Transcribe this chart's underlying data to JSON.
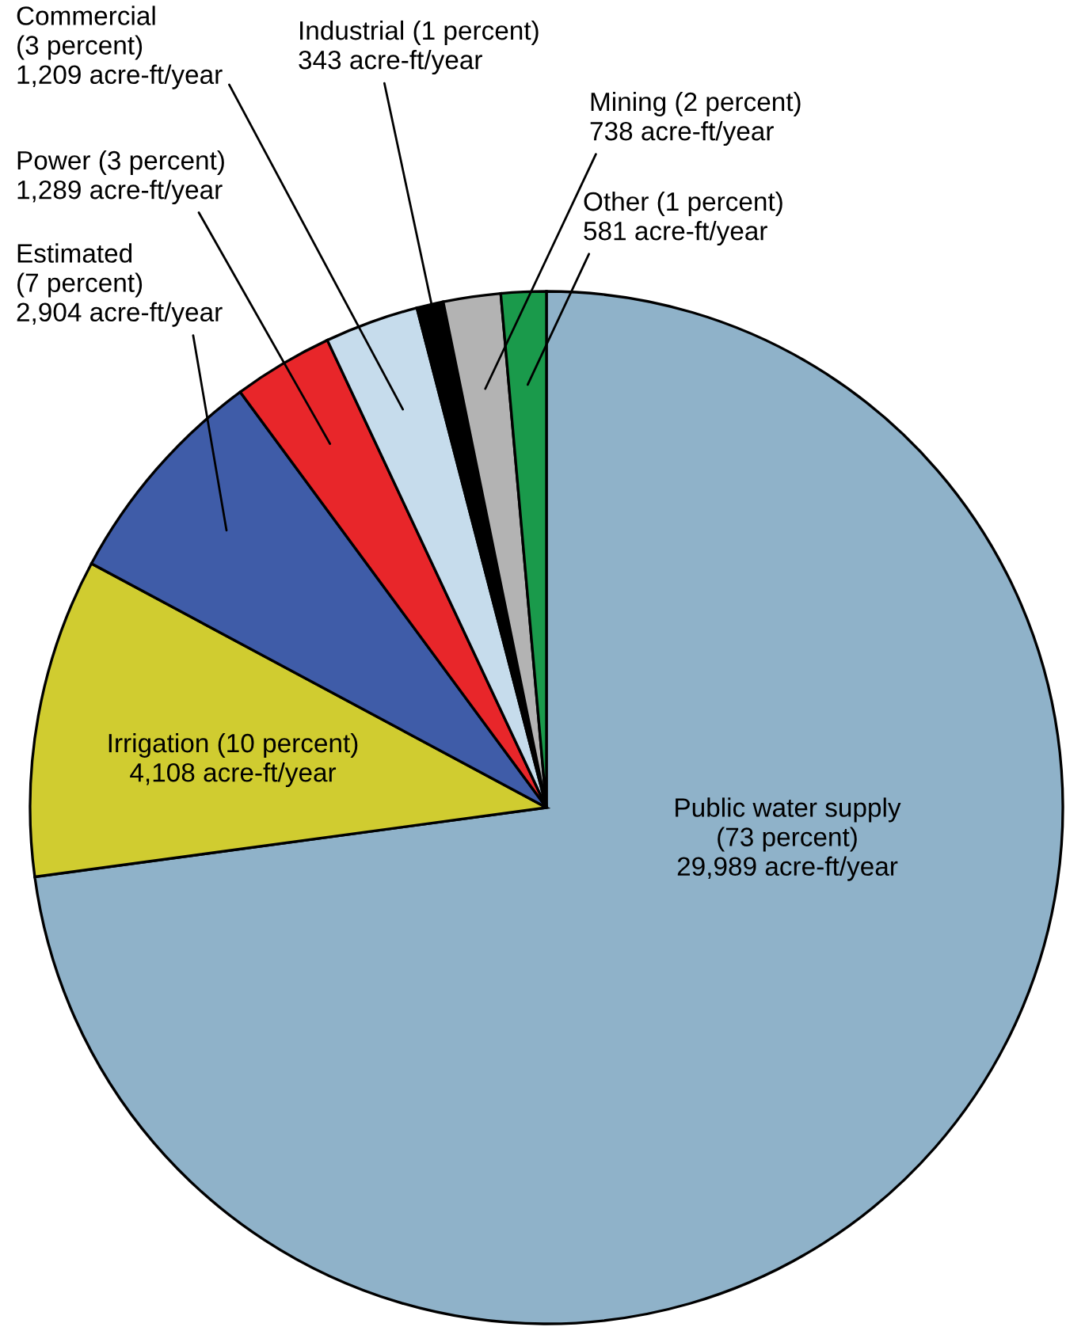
{
  "chart_data": {
    "type": "pie",
    "categories": [
      "Public water supply\n(73 percent)\n29,989 acre-ft/year",
      "Irrigation (10 percent)\n4,108 acre-ft/year",
      "Estimated\n(7 percent)\n2,904 acre-ft/year",
      "Power (3 percent)\n1,289 acre-ft/year",
      "Commercial\n(3 percent)\n1,209 acre-ft/year",
      "Industrial (1 percent)\n343 acre-ft/year",
      "Mining (2 percent)\n738 acre-ft/year",
      "Other (1 percent)\n581 acre-ft/year"
    ],
    "values": [
      29989,
      4108,
      2904,
      1289,
      1209,
      343,
      738,
      581
    ],
    "colors": [
      "#8fb2c9",
      "#d0cc30",
      "#3f5ca8",
      "#e8262a",
      "#c6dcec",
      "#000000",
      "#b3b3b3",
      "#1a9a4b"
    ],
    "legend": false
  }
}
